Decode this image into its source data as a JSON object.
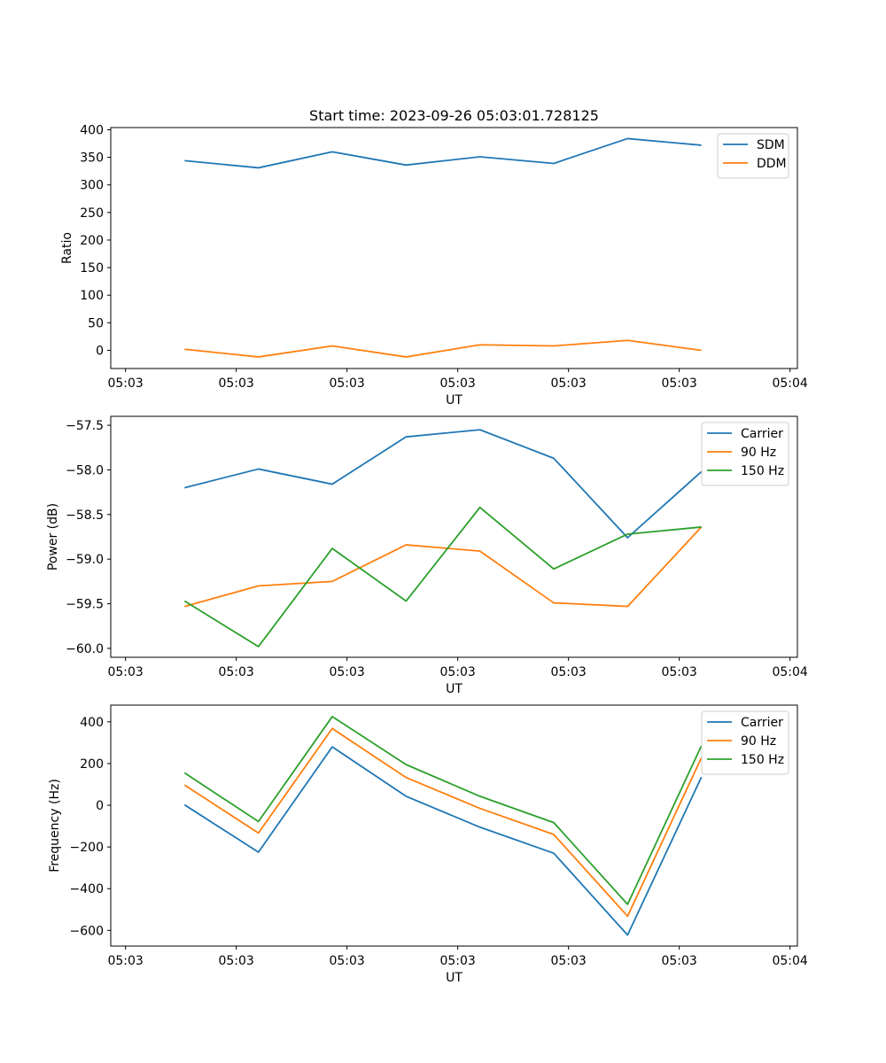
{
  "chart_data": [
    {
      "type": "line",
      "title": "Start time: 2023-09-26 05:03:01.728125",
      "xlabel": "UT",
      "ylabel": "Ratio",
      "x": [
        1,
        2,
        3,
        4,
        5,
        6,
        7,
        8
      ],
      "x_ticks": [
        0.2,
        1.7,
        3.2,
        4.7,
        6.2,
        7.7,
        9.2
      ],
      "x_tick_labels": [
        "05:03",
        "05:03",
        "05:03",
        "05:03",
        "05:03",
        "05:03",
        "05:04"
      ],
      "xlim": [
        0,
        9.3
      ],
      "ylim": [
        -33,
        404
      ],
      "y_ticks": [
        0,
        50,
        100,
        150,
        200,
        250,
        300,
        350,
        400
      ],
      "legend_position": "top-right",
      "series": [
        {
          "name": "SDM",
          "color": "#1f77b4",
          "values": [
            344,
            331,
            360,
            336,
            351,
            339,
            384,
            372
          ]
        },
        {
          "name": "DDM",
          "color": "#ff7f0e",
          "values": [
            2,
            -12,
            8,
            -12,
            10,
            8,
            18,
            0
          ]
        }
      ]
    },
    {
      "type": "line",
      "title": "",
      "xlabel": "UT",
      "ylabel": "Power (dB)",
      "x": [
        1,
        2,
        3,
        4,
        5,
        6,
        7,
        8
      ],
      "x_ticks": [
        0.2,
        1.7,
        3.2,
        4.7,
        6.2,
        7.7,
        9.2
      ],
      "x_tick_labels": [
        "05:03",
        "05:03",
        "05:03",
        "05:03",
        "05:03",
        "05:03",
        "05:04"
      ],
      "xlim": [
        0,
        9.3
      ],
      "ylim": [
        -60.1,
        -57.4
      ],
      "y_ticks": [
        -60.0,
        -59.5,
        -59.0,
        -58.5,
        -58.0,
        -57.5
      ],
      "y_tick_labels": [
        "−60.0",
        "−59.5",
        "−59.0",
        "−58.5",
        "−58.0",
        "−57.5"
      ],
      "legend_position": "top-right",
      "series": [
        {
          "name": "Carrier",
          "color": "#1f77b4",
          "values": [
            -58.2,
            -57.99,
            -58.16,
            -57.63,
            -57.55,
            -57.87,
            -58.76,
            -58.02
          ]
        },
        {
          "name": "90 Hz",
          "color": "#ff7f0e",
          "values": [
            -59.53,
            -59.3,
            -59.25,
            -58.84,
            -58.91,
            -59.49,
            -59.53,
            -58.64
          ]
        },
        {
          "name": "150 Hz",
          "color": "#2ca02c",
          "values": [
            -59.47,
            -59.98,
            -58.88,
            -59.47,
            -58.42,
            -59.11,
            -58.72,
            -58.64
          ]
        }
      ]
    },
    {
      "type": "line",
      "title": "",
      "xlabel": "UT",
      "ylabel": "Frequency (Hz)",
      "x": [
        1,
        2,
        3,
        4,
        5,
        6,
        7,
        8
      ],
      "x_ticks": [
        0.2,
        1.7,
        3.2,
        4.7,
        6.2,
        7.7,
        9.2
      ],
      "x_tick_labels": [
        "05:03",
        "05:03",
        "05:03",
        "05:03",
        "05:03",
        "05:03",
        "05:04"
      ],
      "xlim": [
        0,
        9.3
      ],
      "ylim": [
        -675,
        480
      ],
      "y_ticks": [
        -600,
        -400,
        -200,
        0,
        200,
        400
      ],
      "y_tick_labels": [
        "−600",
        "−400",
        "−200",
        "0",
        "200",
        "400"
      ],
      "legend_position": "top-right",
      "series": [
        {
          "name": "Carrier",
          "color": "#1f77b4",
          "values": [
            2,
            -225,
            280,
            43,
            -105,
            -230,
            -622,
            135
          ]
        },
        {
          "name": "90 Hz",
          "color": "#ff7f0e",
          "values": [
            97,
            -133,
            368,
            133,
            -15,
            -140,
            -532,
            228
          ]
        },
        {
          "name": "150 Hz",
          "color": "#2ca02c",
          "values": [
            155,
            -78,
            425,
            195,
            43,
            -83,
            -475,
            285
          ]
        }
      ]
    }
  ]
}
